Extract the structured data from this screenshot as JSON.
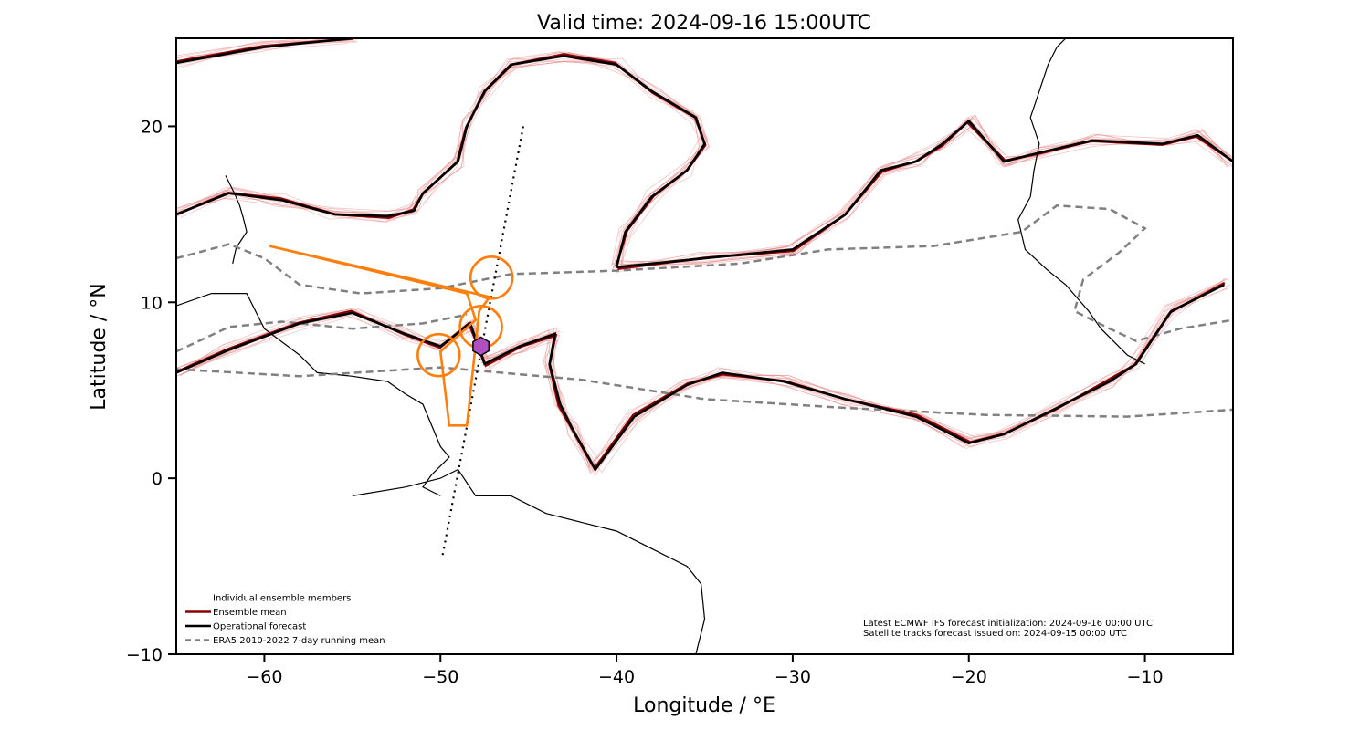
{
  "title": "Valid time: 2024-09-16 15:00UTC",
  "xlabel": "Longitude / °E",
  "ylabel": "Latitude / °N",
  "xticks": [
    {
      "value": -60,
      "label": "−60"
    },
    {
      "value": -50,
      "label": "−50"
    },
    {
      "value": -40,
      "label": "−40"
    },
    {
      "value": -30,
      "label": "−30"
    },
    {
      "value": -20,
      "label": "−20"
    },
    {
      "value": -10,
      "label": "−10"
    }
  ],
  "yticks": [
    {
      "value": 20,
      "label": "20"
    },
    {
      "value": 10,
      "label": "10"
    },
    {
      "value": 0,
      "label": "0"
    },
    {
      "value": -10,
      "label": "−10"
    }
  ],
  "legend": {
    "placement": "bottom-left",
    "items": [
      {
        "label": "Individual ensemble members",
        "color": "#f4a3a3"
      },
      {
        "label": "Ensemble mean",
        "color": "#8b0000"
      },
      {
        "label": "Operational forecast",
        "color": "#000000"
      },
      {
        "label": "ERA5 2010-2022 7-day running mean",
        "color": "#808080"
      }
    ]
  },
  "notes": {
    "init": "Latest ECMWF IFS forecast initialization: 2024-09-16 00:00 UTC",
    "tracks": "Satellite tracks forecast issued on: 2024-09-15 00:00 UTC"
  },
  "colors": {
    "ensemble": "#e88a8a",
    "mean": "#8b0000",
    "operational": "#000000",
    "climatology": "#808080",
    "track": "#ff7f0e",
    "marker": "#b04fc2"
  },
  "chart_data": {
    "type": "map",
    "xlim": [
      -65,
      -5
    ],
    "ylim": [
      -10,
      25
    ],
    "satellite_track": [
      [
        -45.3,
        20
      ],
      [
        -49.9,
        -4.5
      ]
    ],
    "flight_track": [
      [
        -59.7,
        13.2
      ],
      [
        -48.5,
        10.5
      ],
      [
        -48,
        9
      ],
      [
        -50,
        7.2
      ],
      [
        -49.5,
        3
      ],
      [
        -48.5,
        3
      ],
      [
        -47.8,
        9.5
      ],
      [
        -47.2,
        10.3
      ],
      [
        -59.7,
        13.2
      ]
    ],
    "circles": [
      {
        "lon": -47.1,
        "lat": 11.4
      },
      {
        "lon": -47.7,
        "lat": 8.6
      },
      {
        "lon": -50.1,
        "lat": 7.0
      }
    ],
    "marker": {
      "lon": -47.7,
      "lat": 7.5,
      "shape": "hexagon"
    },
    "operational_contours": [
      [
        [
          -65,
          15
        ],
        [
          -62,
          16.2
        ],
        [
          -59,
          15.8
        ],
        [
          -56,
          15
        ],
        [
          -53,
          14.9
        ],
        [
          -51.5,
          15.2
        ],
        [
          -51,
          16.2
        ],
        [
          -49,
          18
        ],
        [
          -48.5,
          20
        ],
        [
          -47.5,
          22
        ],
        [
          -46,
          23.5
        ],
        [
          -43,
          24
        ],
        [
          -40,
          23.5
        ],
        [
          -38,
          22
        ],
        [
          -35.5,
          20.5
        ],
        [
          -35,
          19
        ],
        [
          -36,
          17.5
        ],
        [
          -38,
          16
        ],
        [
          -39.5,
          14
        ],
        [
          -40,
          12
        ]
      ],
      [
        [
          -40,
          12
        ],
        [
          -35,
          12.5
        ],
        [
          -30,
          13
        ],
        [
          -27,
          15
        ],
        [
          -25,
          17.5
        ],
        [
          -23,
          18
        ],
        [
          -21.5,
          19
        ],
        [
          -20,
          20.3
        ],
        [
          -18,
          18
        ],
        [
          -16,
          18.5
        ],
        [
          -13,
          19.2
        ],
        [
          -9,
          19
        ],
        [
          -7,
          19.5
        ],
        [
          -5,
          18
        ]
      ],
      [
        [
          -65,
          6
        ],
        [
          -62,
          7.3
        ],
        [
          -58,
          8.8
        ],
        [
          -55,
          9.4
        ],
        [
          -52,
          8.2
        ],
        [
          -50,
          7.5
        ],
        [
          -48.3,
          8.8
        ],
        [
          -47.5,
          6.5
        ],
        [
          -45.5,
          7.5
        ],
        [
          -43.5,
          8.2
        ],
        [
          -43.8,
          6.5
        ],
        [
          -43.2,
          4.2
        ],
        [
          -42.5,
          2.8
        ],
        [
          -41.2,
          0.5
        ],
        [
          -39,
          3.5
        ],
        [
          -36,
          5.3
        ],
        [
          -34,
          6
        ],
        [
          -30.5,
          5.5
        ],
        [
          -27,
          4.5
        ],
        [
          -23,
          3.5
        ],
        [
          -20,
          2
        ],
        [
          -18,
          2.5
        ],
        [
          -15,
          4
        ],
        [
          -12,
          5.5
        ],
        [
          -10.5,
          6.5
        ],
        [
          -8.5,
          9.5
        ],
        [
          -5.5,
          11
        ]
      ],
      [
        [
          -65,
          23.6
        ],
        [
          -60,
          24.5
        ],
        [
          -55,
          25
        ]
      ]
    ],
    "climatology_contours": [
      [
        [
          -65,
          12.5
        ],
        [
          -62,
          13.3
        ],
        [
          -60,
          12.5
        ],
        [
          -58,
          11
        ],
        [
          -54.5,
          10.5
        ],
        [
          -50,
          10.8
        ],
        [
          -46,
          11.6
        ],
        [
          -40,
          11.8
        ],
        [
          -33,
          12.2
        ],
        [
          -28,
          13
        ],
        [
          -22,
          13.2
        ],
        [
          -17,
          14
        ],
        [
          -15,
          15.5
        ],
        [
          -12,
          15.3
        ],
        [
          -10,
          14.2
        ],
        [
          -11.5,
          12.8
        ],
        [
          -13.5,
          11.3
        ],
        [
          -14,
          9.5
        ],
        [
          -12,
          8.5
        ],
        [
          -10.5,
          7.8
        ],
        [
          -8,
          8.5
        ],
        [
          -5,
          9
        ]
      ],
      [
        [
          -65,
          6.2
        ],
        [
          -58,
          5.8
        ],
        [
          -50,
          6.3
        ],
        [
          -42,
          5.6
        ],
        [
          -35,
          4.5
        ],
        [
          -27,
          4
        ],
        [
          -19,
          3.6
        ],
        [
          -11,
          3.5
        ],
        [
          -5,
          3.9
        ]
      ],
      [
        [
          -65,
          7.2
        ],
        [
          -62,
          8.6
        ],
        [
          -59,
          8.9
        ],
        [
          -55,
          8.5
        ],
        [
          -51,
          8.8
        ],
        [
          -48.5,
          9.3
        ]
      ]
    ]
  }
}
